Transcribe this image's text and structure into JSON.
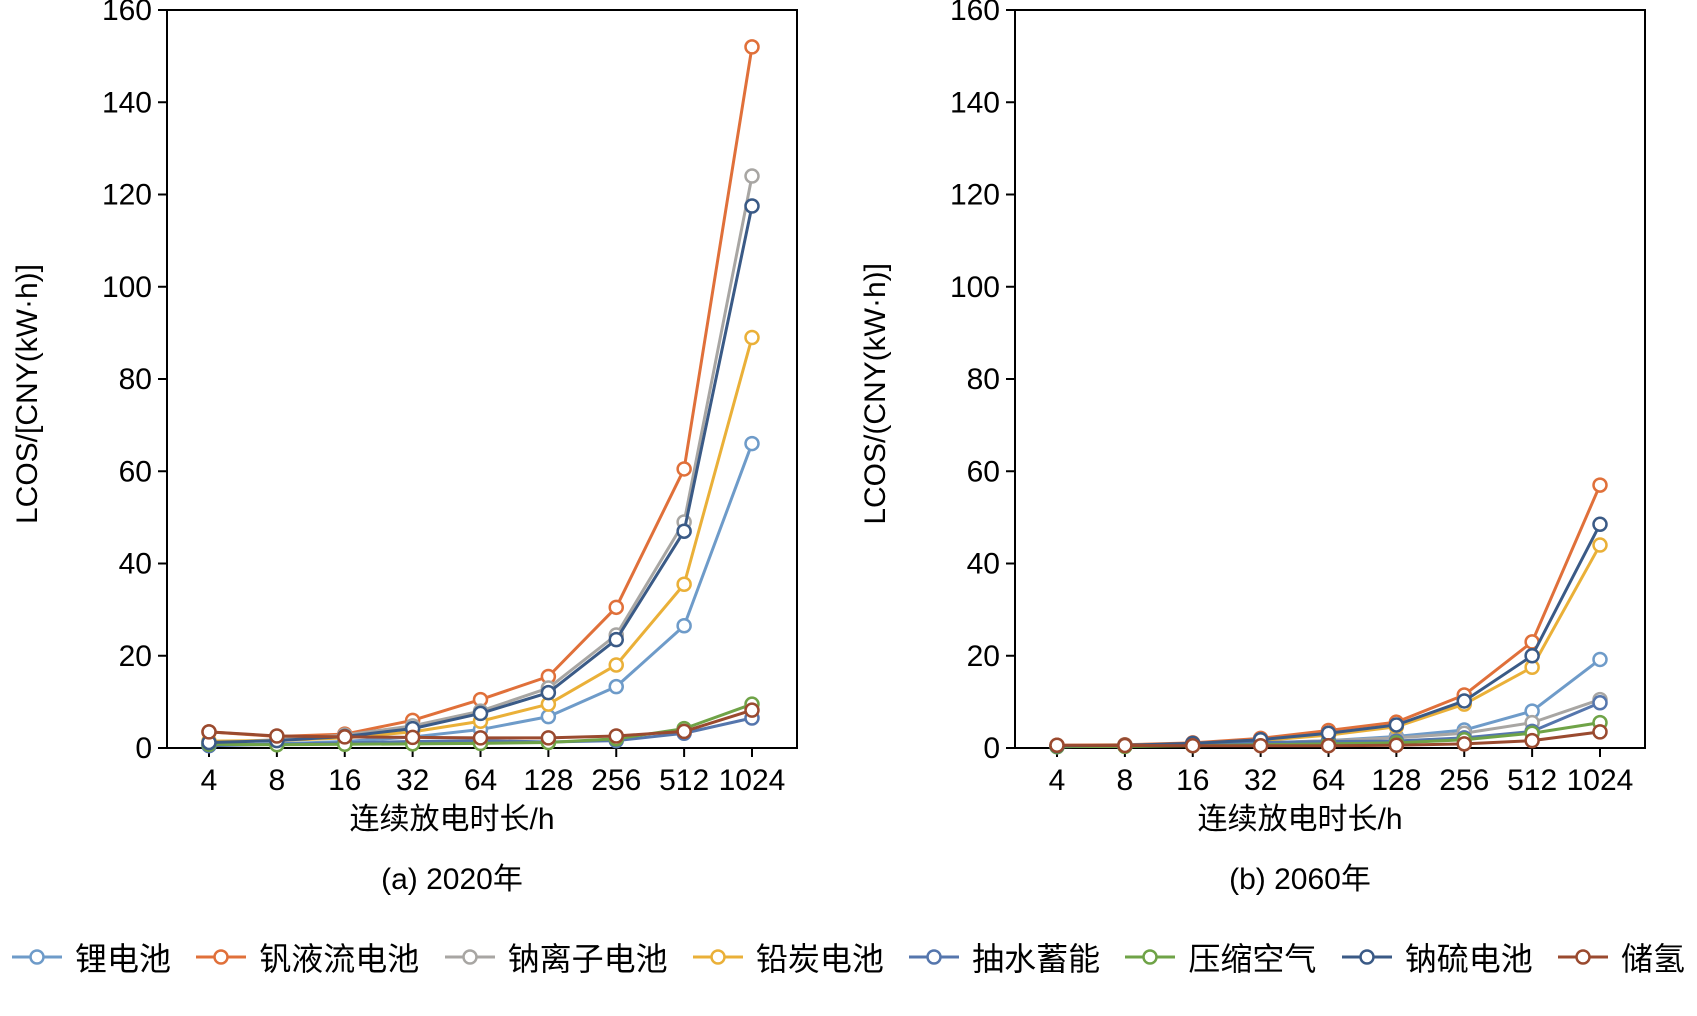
{
  "chart_data": [
    {
      "type": "line",
      "caption": "(a) 2020年",
      "xlabel": "连续放电时长/h",
      "ylabel": "LCOS/[CNY(kW·h)]",
      "ylim": [
        0,
        160
      ],
      "yticks": [
        0,
        20,
        40,
        60,
        80,
        100,
        120,
        140,
        160
      ],
      "categories": [
        "4",
        "8",
        "16",
        "32",
        "64",
        "128",
        "256",
        "512",
        "1024"
      ],
      "x_scale": "log2-categorical",
      "grid": false,
      "series": [
        {
          "name": "锂电池",
          "color": "#6e9bc9",
          "values": [
            0.6,
            0.9,
            1.4,
            2.4,
            4.0,
            6.8,
            13.3,
            26.5,
            66.0
          ]
        },
        {
          "name": "钒液流电池",
          "color": "#e0703a",
          "values": [
            3.5,
            2.5,
            3.0,
            6.0,
            10.5,
            15.5,
            30.5,
            60.5,
            152.0
          ]
        },
        {
          "name": "钠离子电池",
          "color": "#a8a6a3",
          "values": [
            1.2,
            1.8,
            2.8,
            4.8,
            8.0,
            13.0,
            24.5,
            49.0,
            124.0
          ]
        },
        {
          "name": "铅炭电池",
          "color": "#eab038",
          "values": [
            1.5,
            1.6,
            2.2,
            3.5,
            5.8,
            9.5,
            18.0,
            35.5,
            89.0
          ]
        },
        {
          "name": "抽水蓄能",
          "color": "#5576ad",
          "values": [
            0.5,
            0.8,
            1.1,
            1.4,
            1.6,
            1.3,
            1.6,
            3.2,
            6.5
          ]
        },
        {
          "name": "压缩空气",
          "color": "#6fa347",
          "values": [
            0.8,
            0.7,
            0.8,
            0.9,
            1.0,
            1.2,
            2.0,
            4.2,
            9.5
          ]
        },
        {
          "name": "钠硫电池",
          "color": "#3a5a86",
          "values": [
            1.2,
            1.6,
            2.5,
            4.2,
            7.5,
            12.0,
            23.5,
            47.0,
            117.5
          ]
        },
        {
          "name": "储氢",
          "color": "#9a4a2f",
          "values": [
            3.5,
            2.6,
            2.4,
            2.3,
            2.2,
            2.2,
            2.6,
            3.6,
            8.2
          ]
        }
      ]
    },
    {
      "type": "line",
      "caption": "(b) 2060年",
      "xlabel": "连续放电时长/h",
      "ylabel": "LCOS/(CNY(kW·h)]",
      "ylim": [
        0,
        160
      ],
      "yticks": [
        0,
        20,
        40,
        60,
        80,
        100,
        120,
        140,
        160
      ],
      "categories": [
        "4",
        "8",
        "16",
        "32",
        "64",
        "128",
        "256",
        "512",
        "1024"
      ],
      "x_scale": "log2-categorical",
      "grid": false,
      "series": [
        {
          "name": "锂电池",
          "color": "#6e9bc9",
          "values": [
            0.3,
            0.4,
            0.6,
            1.0,
            1.6,
            2.5,
            3.9,
            8.0,
            19.2
          ]
        },
        {
          "name": "钒液流电池",
          "color": "#e0703a",
          "values": [
            0.6,
            0.7,
            1.1,
            2.1,
            3.8,
            5.6,
            11.5,
            23.0,
            57.0
          ]
        },
        {
          "name": "钠离子电池",
          "color": "#a8a6a3",
          "values": [
            0.3,
            0.4,
            0.7,
            1.1,
            1.6,
            2.2,
            3.2,
            5.5,
            10.5
          ]
        },
        {
          "name": "铅炭电池",
          "color": "#eab038",
          "values": [
            0.5,
            0.6,
            0.9,
            1.6,
            2.8,
            4.6,
            9.5,
            17.5,
            44.0
          ]
        },
        {
          "name": "抽水蓄能",
          "color": "#5576ad",
          "values": [
            0.4,
            0.5,
            0.9,
            1.2,
            1.4,
            1.5,
            2.2,
            3.6,
            9.8
          ]
        },
        {
          "name": "压缩空气",
          "color": "#6fa347",
          "values": [
            0.3,
            0.35,
            0.5,
            0.7,
            0.9,
            1.1,
            1.8,
            3.2,
            5.5
          ]
        },
        {
          "name": "钠硫电池",
          "color": "#3a5a86",
          "values": [
            0.5,
            0.6,
            1.0,
            1.8,
            3.2,
            5.0,
            10.2,
            20.0,
            48.5
          ]
        },
        {
          "name": "储氢",
          "color": "#9a4a2f",
          "values": [
            0.6,
            0.55,
            0.5,
            0.5,
            0.5,
            0.6,
            0.9,
            1.6,
            3.5
          ]
        }
      ]
    }
  ],
  "legend": {
    "position": "bottom",
    "items": [
      {
        "label": "锂电池",
        "color": "#6e9bc9"
      },
      {
        "label": "钒液流电池",
        "color": "#e0703a"
      },
      {
        "label": "钠离子电池",
        "color": "#a8a6a3"
      },
      {
        "label": "铅炭电池",
        "color": "#eab038"
      },
      {
        "label": "抽水蓄能",
        "color": "#5576ad"
      },
      {
        "label": "压缩空气",
        "color": "#6fa347"
      },
      {
        "label": "钠硫电池",
        "color": "#3a5a86"
      },
      {
        "label": "储氢",
        "color": "#9a4a2f"
      }
    ]
  },
  "style": {
    "axis_color": "#000000",
    "background": "#ffffff"
  }
}
